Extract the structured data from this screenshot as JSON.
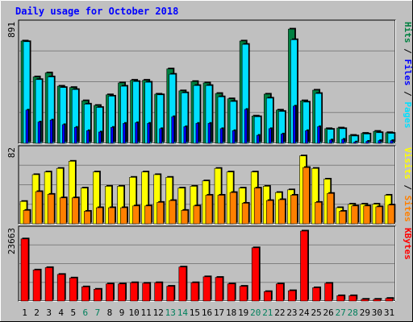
{
  "chart_data": {
    "type": "bar",
    "title": "Daily usage for October 2018",
    "colors": {
      "background": "#c0c0c0",
      "title": "#0000ff",
      "hits": "#008040",
      "files": "#00e0ff",
      "sites": "#ff8000",
      "visits": "#ffff00",
      "kbytes": "#ff0000",
      "weekend_label": "#00805c",
      "weekday_label": "#000000"
    },
    "days": [
      "1",
      "2",
      "3",
      "4",
      "5",
      "6",
      "7",
      "8",
      "9",
      "10",
      "11",
      "12",
      "13",
      "14",
      "15",
      "16",
      "17",
      "18",
      "19",
      "20",
      "21",
      "22",
      "23",
      "24",
      "25",
      "26",
      "27",
      "28",
      "29",
      "30",
      "31"
    ],
    "weekend_days": [
      "6",
      "7",
      "13",
      "14",
      "20",
      "21",
      "27",
      "28"
    ],
    "panels": [
      {
        "id": "hits-files",
        "ymax_label": "891",
        "ylim": [
          0,
          891
        ],
        "label_parts": [
          {
            "text": "Pages",
            "color": "#00e0ff"
          },
          {
            "text": " / ",
            "color": "#000000"
          },
          {
            "text": "Files",
            "color": "#0000ff"
          },
          {
            "text": " / ",
            "color": "#000000"
          },
          {
            "text": "Hits",
            "color": "#008040"
          }
        ],
        "series": [
          {
            "name": "Hits",
            "color": "#008040",
            "values": [
              770,
              500,
              530,
              430,
              420,
              320,
              285,
              365,
              455,
              475,
              475,
              370,
              560,
              395,
              465,
              455,
              375,
              335,
              770,
              205,
              370,
              250,
              860,
              320,
              400,
              110,
              115,
              60,
              75,
              90,
              80
            ]
          },
          {
            "name": "Files",
            "color": "#00e0ff",
            "values": [
              765,
              480,
              500,
              420,
              405,
              295,
              270,
              355,
              430,
              465,
              460,
              365,
              520,
              380,
              435,
              435,
              350,
              315,
              745,
              200,
              340,
              240,
              780,
              310,
              375,
              105,
              110,
              55,
              70,
              80,
              75
            ]
          },
          {
            "name": "Pages",
            "color": "#0000ff",
            "values": [
              250,
              160,
              175,
              140,
              120,
              95,
              85,
              120,
              150,
              155,
              150,
              110,
              200,
              125,
              150,
              150,
              110,
              95,
              255,
              60,
              110,
              70,
              280,
              95,
              125,
              25,
              30,
              10,
              15,
              20,
              20
            ]
          }
        ]
      },
      {
        "id": "sites-visits",
        "ymax_label": "82",
        "ylim": [
          0,
          82
        ],
        "label_parts": [
          {
            "text": "Sites",
            "color": "#ff8000"
          },
          {
            "text": " / ",
            "color": "#000000"
          },
          {
            "text": "Visits",
            "color": "#ffff00"
          }
        ],
        "series": [
          {
            "name": "Visits",
            "color": "#ffff00",
            "values": [
              25,
              55,
              58,
              62,
              70,
              40,
              58,
              42,
              42,
              52,
              58,
              55,
              52,
              40,
              42,
              48,
              62,
              58,
              40,
              58,
              42,
              35,
              38,
              76,
              62,
              50,
              18,
              22,
              22,
              22,
              32
            ]
          },
          {
            "name": "Sites",
            "color": "#ff8000",
            "values": [
              15,
              36,
              33,
              29,
              29,
              14,
              18,
              18,
              18,
              20,
              20,
              24,
              26,
              15,
              20,
              32,
              32,
              35,
              23,
              40,
              26,
              27,
              32,
              63,
              24,
              34,
              14,
              20,
              20,
              19,
              21
            ]
          }
        ]
      },
      {
        "id": "kbytes",
        "ymax_label": "23663",
        "ylim": [
          0,
          23663
        ],
        "label_parts": [
          {
            "text": "KBytes",
            "color": "#ff0000"
          }
        ],
        "series": [
          {
            "name": "KBytes",
            "color": "#ff0000",
            "values": [
              21000,
              10500,
              11300,
              9000,
              7800,
              4800,
              4000,
              5800,
              5800,
              6200,
              6000,
              6200,
              5000,
              11500,
              6200,
              8200,
              8000,
              5800,
              5000,
              18000,
              3200,
              5800,
              3500,
              23663,
              4500,
              6000,
              1800,
              1800,
              600,
              600,
              900
            ]
          }
        ]
      }
    ]
  }
}
